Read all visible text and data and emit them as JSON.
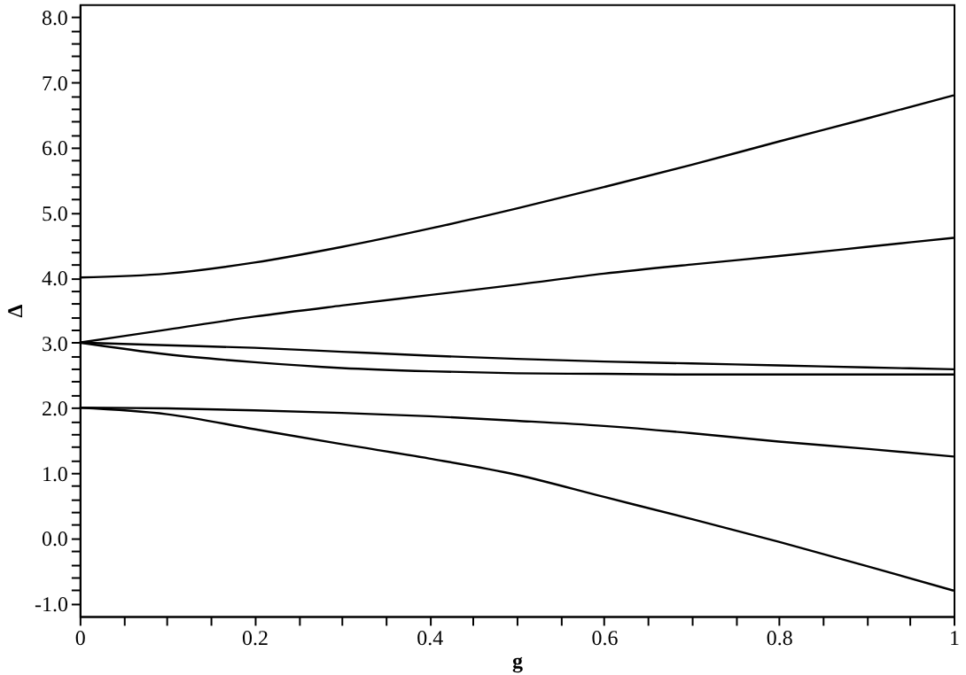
{
  "chart_data": {
    "type": "line",
    "xlabel": "g",
    "ylabel": "Δ",
    "x": [
      0,
      0.1,
      0.2,
      0.3,
      0.4,
      0.5,
      0.6,
      0.7,
      0.8,
      0.9,
      1
    ],
    "series": [
      {
        "color": "#000000",
        "values": [
          4.0,
          4.06,
          4.23,
          4.47,
          4.75,
          5.06,
          5.39,
          5.73,
          6.09,
          6.44,
          6.8
        ]
      },
      {
        "color": "#000000",
        "values": [
          3.0,
          3.2,
          3.4,
          3.57,
          3.73,
          3.89,
          4.06,
          4.2,
          4.33,
          4.47,
          4.61
        ]
      },
      {
        "color": "#000000",
        "values": [
          3.0,
          2.96,
          2.92,
          2.86,
          2.8,
          2.75,
          2.71,
          2.68,
          2.65,
          2.62,
          2.59
        ]
      },
      {
        "color": "#000000",
        "values": [
          3.0,
          2.82,
          2.7,
          2.61,
          2.56,
          2.53,
          2.52,
          2.51,
          2.51,
          2.51,
          2.51
        ]
      },
      {
        "color": "#000000",
        "values": [
          2.0,
          1.99,
          1.96,
          1.92,
          1.87,
          1.8,
          1.72,
          1.61,
          1.48,
          1.37,
          1.25
        ]
      },
      {
        "color": "#000000",
        "values": [
          2.0,
          1.9,
          1.67,
          1.44,
          1.22,
          0.97,
          0.63,
          0.29,
          -0.06,
          -0.43,
          -0.81
        ]
      }
    ],
    "xlim": [
      0,
      1
    ],
    "ylim": [
      -1.2,
      8.2
    ],
    "xticks": [
      0,
      {
        "value": 0.05,
        "label": null
      },
      {
        "value": 0.1,
        "label": null
      },
      {
        "value": 0.15,
        "label": null
      },
      0.2,
      {
        "value": 0.25,
        "label": null
      },
      {
        "value": 0.3,
        "label": null
      },
      {
        "value": 0.35,
        "label": null
      },
      0.4,
      {
        "value": 0.45,
        "label": null
      },
      {
        "value": 0.5,
        "label": null
      },
      {
        "value": 0.55,
        "label": null
      },
      0.6,
      {
        "value": 0.65,
        "label": null
      },
      {
        "value": 0.7,
        "label": null
      },
      {
        "value": 0.75,
        "label": null
      },
      0.8,
      {
        "value": 0.85,
        "label": null
      },
      {
        "value": 0.9,
        "label": null
      },
      {
        "value": 0.95,
        "label": null
      },
      1
    ],
    "yticks": [
      {
        "value": -1,
        "label": "-1.0"
      },
      {
        "value": -0.8,
        "label": null
      },
      {
        "value": -0.6,
        "label": null
      },
      {
        "value": -0.4,
        "label": null
      },
      {
        "value": -0.2,
        "label": null
      },
      {
        "value": 0,
        "label": "0.0"
      },
      {
        "value": 0.2,
        "label": null
      },
      {
        "value": 0.4,
        "label": null
      },
      {
        "value": 0.6,
        "label": null
      },
      {
        "value": 0.8,
        "label": null
      },
      {
        "value": 1,
        "label": "1.0"
      },
      {
        "value": 1.2,
        "label": null
      },
      {
        "value": 1.4,
        "label": null
      },
      {
        "value": 1.6,
        "label": null
      },
      {
        "value": 1.8,
        "label": null
      },
      {
        "value": 2,
        "label": "2.0"
      },
      {
        "value": 2.2,
        "label": null
      },
      {
        "value": 2.4,
        "label": null
      },
      {
        "value": 2.6,
        "label": null
      },
      {
        "value": 2.8,
        "label": null
      },
      {
        "value": 3,
        "label": "3.0"
      },
      {
        "value": 3.2,
        "label": null
      },
      {
        "value": 3.4,
        "label": null
      },
      {
        "value": 3.6,
        "label": null
      },
      {
        "value": 3.8,
        "label": null
      },
      {
        "value": 4,
        "label": "4.0"
      },
      {
        "value": 4.2,
        "label": null
      },
      {
        "value": 4.4,
        "label": null
      },
      {
        "value": 4.6,
        "label": null
      },
      {
        "value": 4.8,
        "label": null
      },
      {
        "value": 5,
        "label": "5.0"
      },
      {
        "value": 5.2,
        "label": null
      },
      {
        "value": 5.4,
        "label": null
      },
      {
        "value": 5.6,
        "label": null
      },
      {
        "value": 5.8,
        "label": null
      },
      {
        "value": 6,
        "label": "6.0"
      },
      {
        "value": 6.2,
        "label": null
      },
      {
        "value": 6.4,
        "label": null
      },
      {
        "value": 6.6,
        "label": null
      },
      {
        "value": 6.8,
        "label": null
      },
      {
        "value": 7,
        "label": "7.0"
      },
      {
        "value": 7.2,
        "label": null
      },
      {
        "value": 7.4,
        "label": null
      },
      {
        "value": 7.6,
        "label": null
      },
      {
        "value": 7.8,
        "label": null
      },
      {
        "value": 8,
        "label": "8.0"
      }
    ],
    "grid": false,
    "legend": false,
    "marker": "none",
    "line_style": "solid"
  }
}
